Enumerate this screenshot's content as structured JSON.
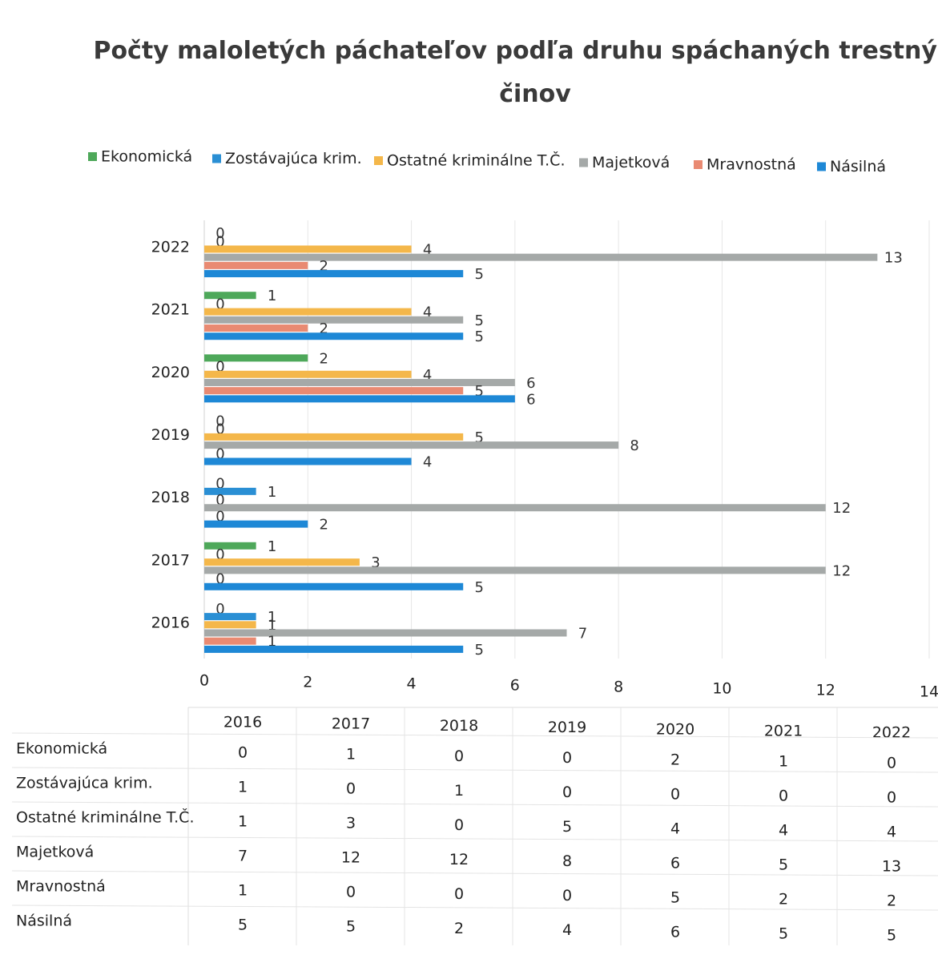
{
  "chart_data": {
    "type": "bar",
    "orientation": "horizontal",
    "title": "Počty maloletých páchateľov podľa druhu spáchaných trestných činov",
    "categories": [
      "2016",
      "2017",
      "2018",
      "2019",
      "2020",
      "2021",
      "2022"
    ],
    "series": [
      {
        "name": "Ekonomická",
        "color": "#4ea85a",
        "values": [
          0,
          1,
          0,
          0,
          2,
          1,
          0
        ]
      },
      {
        "name": "Zostávajúca krim.",
        "color": "#2a8fd4",
        "values": [
          1,
          0,
          1,
          0,
          0,
          0,
          0
        ]
      },
      {
        "name": "Ostatné kriminálne T.Č.",
        "color": "#f4b74a",
        "values": [
          1,
          3,
          0,
          5,
          4,
          4,
          4
        ]
      },
      {
        "name": "Majetková",
        "color": "#a5a9a8",
        "values": [
          7,
          12,
          12,
          8,
          6,
          5,
          13
        ]
      },
      {
        "name": "Mravnostná",
        "color": "#e98a72",
        "values": [
          1,
          0,
          0,
          0,
          5,
          2,
          2
        ]
      },
      {
        "name": "Násilná",
        "color": "#1e88d6",
        "values": [
          5,
          5,
          2,
          4,
          6,
          5,
          5
        ]
      }
    ],
    "xlim": [
      0,
      14
    ],
    "xticks": [
      0,
      2,
      4,
      6,
      8,
      10,
      12,
      14
    ],
    "grid": true,
    "legend": "top",
    "data_table": true
  }
}
